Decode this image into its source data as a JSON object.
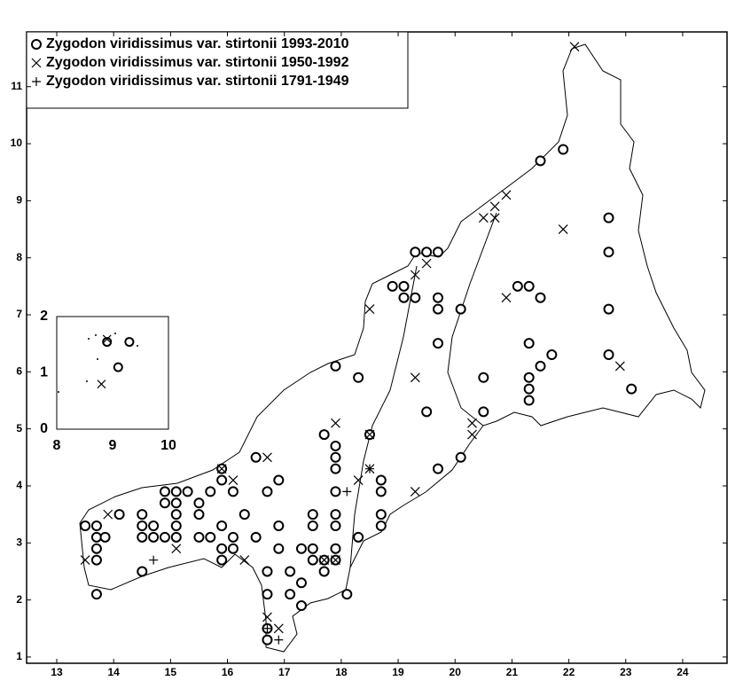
{
  "chart_data": [
    {
      "type": "scatter",
      "xlim": [
        12.47,
        24.78
      ],
      "ylim": [
        0.89,
        11.96
      ],
      "xticks": [
        13,
        14,
        15,
        16,
        17,
        18,
        19,
        20,
        21,
        22,
        23,
        24
      ],
      "yticks": [
        1,
        2,
        3,
        4,
        5,
        6,
        7,
        8,
        9,
        10,
        11
      ],
      "legend": "upper left",
      "series": [
        {
          "name": "Zygodon viridissimus var. stirtonii 1993-2010",
          "marker": "circle",
          "color": "#000000",
          "x": [
            13.7,
            13.5,
            13.7,
            13.7,
            13.85,
            13.7,
            13.7,
            14.5,
            14.5,
            14.5,
            14.7,
            14.7,
            14.1,
            14.5,
            14.9,
            14.9,
            14.9,
            15.1,
            15.1,
            15.1,
            15.1,
            15.1,
            15.3,
            15.5,
            15.5,
            15.5,
            15.7,
            15.7,
            15.9,
            15.9,
            16.1,
            15.9,
            15.9,
            15.9,
            16.1,
            16.1,
            16.3,
            16.5,
            16.5,
            16.7,
            16.9,
            16.9,
            16.9,
            16.7,
            16.7,
            16.7,
            16.7,
            17.1,
            17.1,
            17.3,
            17.3,
            17.3,
            17.5,
            17.5,
            17.5,
            17.5,
            17.7,
            17.7,
            17.7,
            17.9,
            17.9,
            17.9,
            17.9,
            17.9,
            17.9,
            17.9,
            17.9,
            18.1,
            17.9,
            18.3,
            18.3,
            18.5,
            18.7,
            18.7,
            18.7,
            18.7,
            18.9,
            19.1,
            19.1,
            19.3,
            19.3,
            19.5,
            19.7,
            19.7,
            19.7,
            19.7,
            19.5,
            19.7,
            20.1,
            20.1,
            20.5,
            20.5,
            21.1,
            21.3,
            21.5,
            21.3,
            21.5,
            21.7,
            21.3,
            21.3,
            21.3,
            21.5,
            21.9,
            22.7,
            22.7,
            22.7,
            22.7,
            23.1
          ],
          "y": [
            2.1,
            3.3,
            3.3,
            3.1,
            3.1,
            2.9,
            2.7,
            3.5,
            3.3,
            3.1,
            3.3,
            3.1,
            3.5,
            2.5,
            3.9,
            3.7,
            3.1,
            3.9,
            3.7,
            3.5,
            3.3,
            3.1,
            3.9,
            3.7,
            3.5,
            3.1,
            3.9,
            3.1,
            4.3,
            4.1,
            3.9,
            3.3,
            2.9,
            2.7,
            3.1,
            2.9,
            3.5,
            3.1,
            4.5,
            3.9,
            4.1,
            3.3,
            2.9,
            2.5,
            2.1,
            1.5,
            1.3,
            2.5,
            2.1,
            2.3,
            1.9,
            2.9,
            3.5,
            3.3,
            2.9,
            2.7,
            2.7,
            2.5,
            4.9,
            4.7,
            4.5,
            4.3,
            3.9,
            3.5,
            3.3,
            2.9,
            2.7,
            2.1,
            6.1,
            5.9,
            3.1,
            4.9,
            4.1,
            3.9,
            3.5,
            3.3,
            7.5,
            7.5,
            7.3,
            7.3,
            8.1,
            8.1,
            8.1,
            7.3,
            7.1,
            6.5,
            5.3,
            4.3,
            7.1,
            4.5,
            5.9,
            5.3,
            7.5,
            7.5,
            7.3,
            6.5,
            6.1,
            6.3,
            5.9,
            5.7,
            5.5,
            9.7,
            9.9,
            8.7,
            8.1,
            7.1,
            6.3,
            5.7
          ]
        },
        {
          "name": "Zygodon viridissimus var. stirtonii 1950-1992",
          "marker": "cross",
          "color": "#000000",
          "x": [
            22.1,
            21.9,
            20.9,
            20.7,
            20.5,
            20.7,
            20.9,
            19.5,
            19.3,
            18.5,
            19.3,
            22.9,
            20.3,
            20.3,
            19.3,
            18.5,
            18.3,
            17.9,
            16.7,
            16.1,
            15.9,
            16.3,
            15.1,
            13.9,
            13.5,
            16.7,
            16.9,
            17.7,
            18.5,
            17.9
          ],
          "y": [
            11.7,
            8.5,
            9.1,
            8.9,
            8.7,
            8.7,
            7.3,
            7.9,
            7.7,
            7.1,
            5.9,
            6.1,
            5.1,
            4.9,
            3.9,
            4.3,
            4.1,
            5.1,
            4.5,
            4.1,
            4.3,
            2.7,
            2.9,
            3.5,
            2.7,
            1.7,
            1.5,
            2.7,
            4.9,
            2.7
          ]
        },
        {
          "name": "Zygodon viridissimus var. stirtonii 1791-1949",
          "marker": "plus",
          "color": "#000000",
          "x": [
            14.7,
            16.9,
            16.7,
            18.5,
            18.1
          ],
          "y": [
            2.7,
            1.3,
            1.5,
            4.3,
            3.9
          ]
        }
      ]
    },
    {
      "type": "scatter",
      "xlim": [
        8,
        10
      ],
      "ylim": [
        0,
        2
      ],
      "xticks": [
        8,
        9,
        10
      ],
      "yticks": [
        0,
        1,
        2
      ],
      "series": [
        {
          "marker": "circle",
          "color": "#000000",
          "x": [
            8.9,
            9.3,
            9.1
          ],
          "y": [
            1.55,
            1.55,
            1.1
          ]
        },
        {
          "marker": "cross",
          "color": "#000000",
          "x": [
            8.9,
            8.8
          ],
          "y": [
            1.6,
            0.8
          ]
        }
      ]
    }
  ]
}
